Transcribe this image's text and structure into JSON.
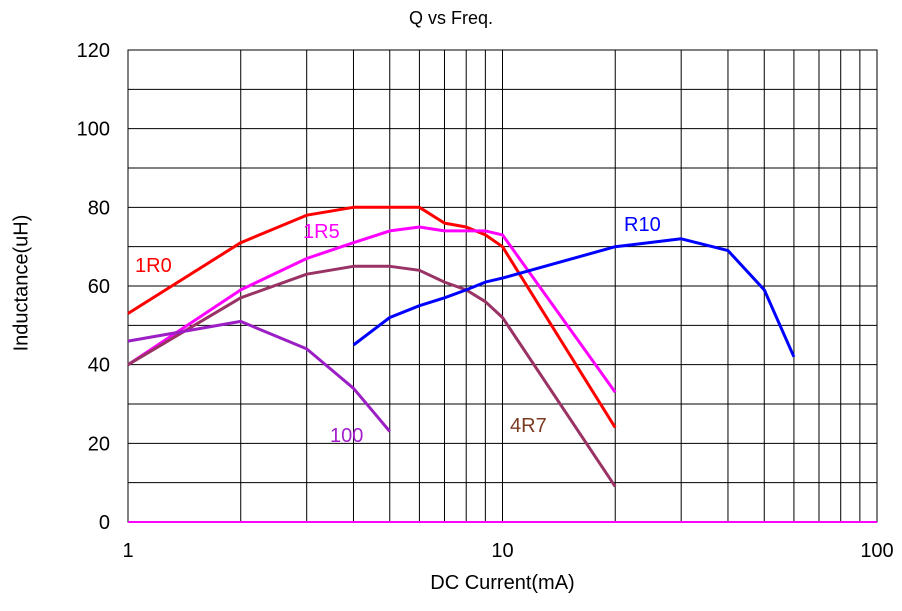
{
  "chart_data": {
    "type": "line",
    "title": "Q vs Freq.",
    "xlabel": "DC Current(mA)",
    "ylabel": "Inductance(uH)",
    "x_scale": "log",
    "xlim": [
      1,
      100
    ],
    "ylim": [
      0,
      120
    ],
    "x_ticks": [
      "1",
      "10",
      "100"
    ],
    "y_ticks": [
      "0",
      "20",
      "40",
      "60",
      "80",
      "100",
      "120"
    ],
    "grid": true,
    "series": [
      {
        "name": "1R0",
        "color": "#ff0000",
        "x": [
          1,
          2,
          3,
          4,
          5,
          6,
          7,
          8,
          9,
          10,
          20
        ],
        "y": [
          53,
          71,
          78,
          80,
          80,
          80,
          76,
          75,
          73,
          70,
          24
        ]
      },
      {
        "name": "1R5",
        "color": "#ff00ff",
        "x": [
          1,
          2,
          3,
          4,
          5,
          6,
          7,
          8,
          9,
          10,
          20
        ],
        "y": [
          40,
          59,
          67,
          71,
          74,
          75,
          74,
          74,
          74,
          73,
          33
        ]
      },
      {
        "name": "4R7",
        "color": "#7b3b22",
        "label_color": "#7b3b22",
        "line_color": "#993366",
        "x": [
          1,
          2,
          3,
          4,
          5,
          6,
          7,
          8,
          9,
          10,
          20
        ],
        "y": [
          40,
          57,
          63,
          65,
          65,
          64,
          61,
          59,
          56,
          52,
          9
        ]
      },
      {
        "name": "100",
        "color": "#9900cc",
        "label_color": "#a31fcc",
        "line_color": "#9b1fc4",
        "x": [
          1,
          2,
          3,
          4,
          5
        ],
        "y": [
          46,
          51,
          44,
          34,
          23
        ]
      },
      {
        "name": "R10",
        "color": "#0000ff",
        "x": [
          4,
          5,
          6,
          7,
          8,
          9,
          10,
          20,
          30,
          40,
          50,
          60
        ],
        "y": [
          45,
          52,
          55,
          57,
          59,
          61,
          62,
          70,
          72,
          69,
          59,
          42
        ]
      }
    ]
  }
}
